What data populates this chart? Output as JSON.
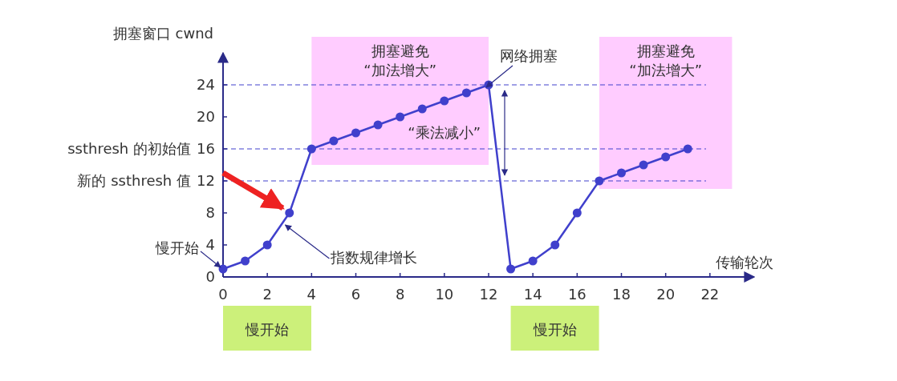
{
  "chart_data": {
    "type": "line",
    "xlabel": "传输轮次",
    "ylabel": "拥塞窗口 cwnd",
    "xlim": [
      0,
      24
    ],
    "ylim": [
      0,
      28
    ],
    "xticks": [
      0,
      2,
      4,
      6,
      8,
      10,
      12,
      14,
      16,
      18,
      20,
      22
    ],
    "yticks": [
      0,
      4,
      8,
      12,
      16,
      20,
      24
    ],
    "grid": false,
    "marker": "circle",
    "line_style": "solid",
    "series": [
      {
        "color": "#4040cc",
        "x": [
          0,
          1,
          2,
          3,
          4,
          5,
          6,
          7,
          8,
          9,
          10,
          11,
          12,
          13,
          14,
          15,
          16,
          17,
          18,
          19,
          20,
          21
        ],
        "values": [
          1,
          2,
          4,
          8,
          16,
          17,
          18,
          19,
          20,
          21,
          22,
          23,
          24,
          1,
          2,
          4,
          8,
          12,
          13,
          14,
          15,
          16
        ]
      }
    ],
    "ref_lines": [
      {
        "axis": "y",
        "value": 24,
        "label": null,
        "line_style": "dashed",
        "color": "#4040cc"
      },
      {
        "axis": "y",
        "value": 16,
        "label": "ssthresh 的初始值",
        "line_style": "dashed",
        "color": "#4040cc"
      },
      {
        "axis": "y",
        "value": 12,
        "label": "新的 ssthresh 值",
        "line_style": "dashed",
        "color": "#4040cc"
      }
    ],
    "bands": [
      {
        "axis": "x",
        "from": 4,
        "to": 12,
        "label": "拥塞避免\n“加法增大”",
        "color": "#ffccff"
      },
      {
        "axis": "x",
        "from": 17,
        "to": 23,
        "label": "拥塞避免\n“加法增大”",
        "color": "#ffccff"
      }
    ],
    "annotations": [
      {
        "text": "网络拥塞",
        "x": 12,
        "y": 24
      },
      "“乘法减小”",
      {
        "text": "指数规律增长",
        "x": 2.7,
        "y": 6.8
      },
      {
        "text": "慢开始",
        "x": 0,
        "y": 1
      },
      "慢开始",
      "慢开始"
    ]
  }
}
